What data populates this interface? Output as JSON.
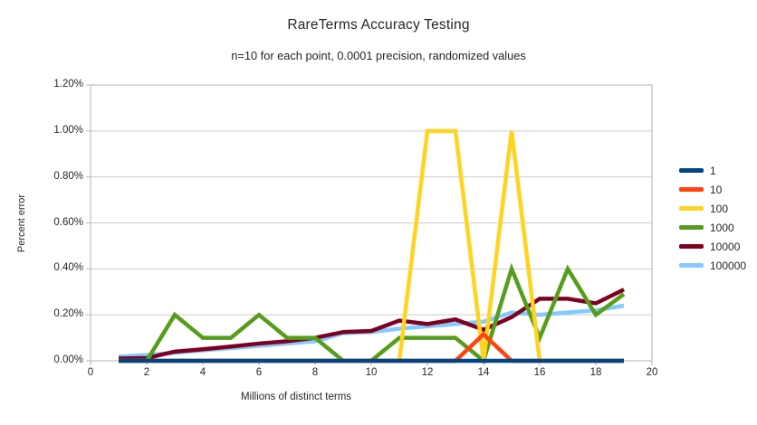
{
  "title": "RareTerms Accuracy Testing",
  "subtitle": "n=10 for each point, 0.0001 precision, randomized values",
  "colors": {
    "axis": "#b3b3b3",
    "grid": "#cccccc",
    "text": "#262626"
  },
  "chart_data": {
    "type": "line",
    "title": "RareTerms Accuracy Testing",
    "subtitle": "n=10 for each point, 0.0001 precision, randomized values",
    "xlabel": "Millions of distinct terms",
    "ylabel": "Percent error",
    "xlim": [
      0,
      20
    ],
    "ylim_percent": [
      0,
      1.2
    ],
    "grid": true,
    "legend_position": "right",
    "y_unit": "%",
    "x_ticks": [
      "0",
      "2",
      "4",
      "6",
      "8",
      "10",
      "12",
      "14",
      "16",
      "18",
      "20"
    ],
    "y_ticks": [
      "0.00%",
      "0.20%",
      "0.40%",
      "0.60%",
      "0.80%",
      "1.00%",
      "1.20%"
    ],
    "x": [
      1,
      2,
      3,
      4,
      5,
      6,
      7,
      8,
      9,
      10,
      11,
      12,
      13,
      14,
      15,
      16,
      17,
      18,
      19
    ],
    "series": [
      {
        "name": "1",
        "color": "#004586",
        "values": [
          0,
          0,
          0,
          0,
          0,
          0,
          0,
          0,
          0,
          0,
          0,
          0,
          0,
          0,
          0,
          0,
          0,
          0,
          0
        ]
      },
      {
        "name": "10",
        "color": "#FF420E",
        "values": [
          0,
          0,
          0,
          0,
          0,
          0,
          0,
          0,
          0,
          0,
          0,
          0,
          0,
          0.115,
          0,
          0,
          0,
          0,
          0
        ]
      },
      {
        "name": "100",
        "color": "#FFD320",
        "values": [
          0,
          0,
          0,
          0,
          0,
          0,
          0,
          0,
          0,
          0,
          0,
          1.0,
          1.0,
          0,
          1.0,
          0,
          0,
          0,
          0
        ]
      },
      {
        "name": "1000",
        "color": "#579D1C",
        "values": [
          0,
          0,
          0.2,
          0.1,
          0.1,
          0.2,
          0.1,
          0.1,
          0,
          0,
          0.1,
          0.1,
          0.1,
          0,
          0.4,
          0.1,
          0.4,
          0.2,
          0.29
        ]
      },
      {
        "name": "10000",
        "color": "#7E0021",
        "values": [
          0.01,
          0.012,
          0.04,
          0.05,
          0.062,
          0.075,
          0.085,
          0.1,
          0.125,
          0.13,
          0.175,
          0.16,
          0.18,
          0.135,
          0.19,
          0.27,
          0.27,
          0.25,
          0.31
        ]
      },
      {
        "name": "100000",
        "color": "#83CAFF",
        "values": [
          0.018,
          0.025,
          0.035,
          0.045,
          0.055,
          0.065,
          0.075,
          0.085,
          0.12,
          0.125,
          0.14,
          0.15,
          0.16,
          0.17,
          0.21,
          0.2,
          0.21,
          0.22,
          0.24
        ]
      }
    ]
  }
}
